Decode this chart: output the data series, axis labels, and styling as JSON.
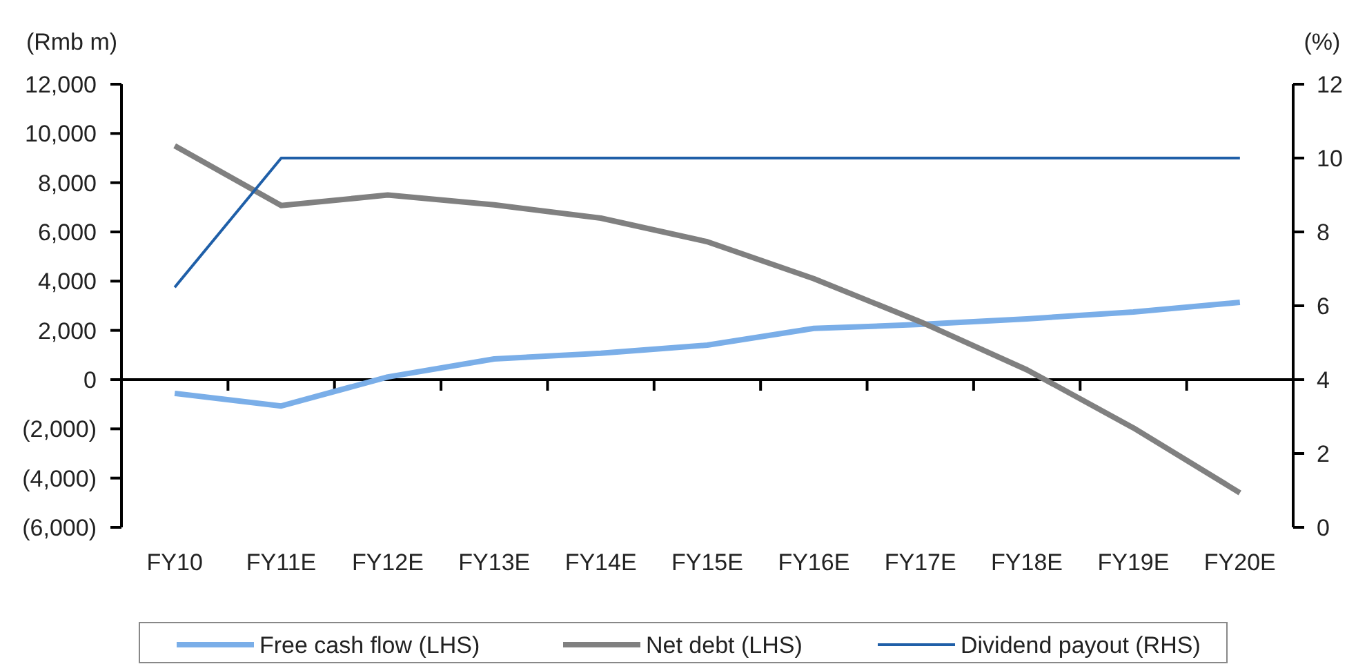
{
  "chart_data": {
    "type": "line",
    "ylabel": "(Rmb m)",
    "y2label": "(%)",
    "categories": [
      "FY10",
      "FY11E",
      "FY12E",
      "FY13E",
      "FY14E",
      "FY15E",
      "FY16E",
      "FY17E",
      "FY18E",
      "FY19E",
      "FY20E"
    ],
    "series": [
      {
        "name": "Free cash flow (LHS)",
        "color": "#7aaee8",
        "values": [
          -560,
          -1070,
          110,
          840,
          1070,
          1400,
          2080,
          2240,
          2470,
          2750,
          3140
        ]
      },
      {
        "name": "Net debt (LHS)",
        "color": "#808080",
        "values": [
          9500,
          7070,
          7500,
          7100,
          6560,
          5600,
          4100,
          2350,
          400,
          -1960,
          -4600
        ]
      },
      {
        "name": "Dividend payout (RHS)",
        "color": "#1f5fa8",
        "axis": "y2",
        "values": [
          6.5,
          10,
          10,
          10,
          10,
          10,
          10,
          10,
          10,
          10,
          10
        ]
      }
    ],
    "ylim": [
      -6000,
      12000
    ],
    "yticks": [
      {
        "value": -6000,
        "label": "(6,000)"
      },
      {
        "value": -4000,
        "label": "(4,000)"
      },
      {
        "value": -2000,
        "label": "(2,000)"
      },
      0,
      {
        "value": 2000,
        "label": "2,000"
      },
      {
        "value": 4000,
        "label": "4,000"
      },
      {
        "value": 6000,
        "label": "6,000"
      },
      {
        "value": 8000,
        "label": "8,000"
      },
      {
        "value": 10000,
        "label": "10,000"
      },
      {
        "value": 12000,
        "label": "12,000"
      }
    ],
    "y2lim": [
      0,
      12
    ],
    "y2ticks": [
      0,
      2,
      4,
      6,
      8,
      10,
      12
    ],
    "legend": "bottom",
    "marker": "none",
    "line_style": "solid"
  }
}
